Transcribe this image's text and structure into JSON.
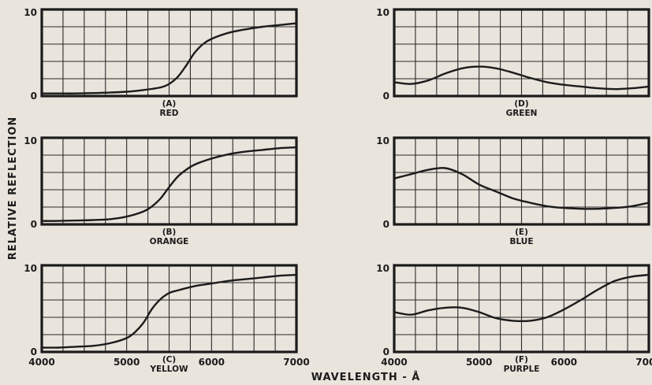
{
  "chart_data": {
    "type": "line",
    "xlabel": "WAVELENGTH - Å",
    "ylabel": "RELATIVE REFLECTION",
    "x_ticks": [
      "4000",
      "5000",
      "6000",
      "7000"
    ],
    "y_ticks": [
      "0",
      "10"
    ],
    "xlim": [
      4000,
      7000
    ],
    "ylim": [
      0,
      10
    ],
    "grid": true,
    "panels": [
      {
        "letter": "(A)",
        "name": "RED",
        "x": [
          4000,
          4200,
          4400,
          4600,
          4800,
          5000,
          5200,
          5400,
          5500,
          5600,
          5700,
          5800,
          5900,
          6000,
          6200,
          6400,
          6600,
          6800,
          7000
        ],
        "y": [
          0.3,
          0.3,
          0.3,
          0.35,
          0.4,
          0.5,
          0.7,
          1.0,
          1.4,
          2.2,
          3.5,
          5.0,
          6.0,
          6.6,
          7.3,
          7.7,
          8.0,
          8.2,
          8.4
        ]
      },
      {
        "letter": "(B)",
        "name": "ORANGE",
        "x": [
          4000,
          4200,
          4400,
          4600,
          4800,
          5000,
          5200,
          5300,
          5400,
          5500,
          5600,
          5700,
          5800,
          6000,
          6200,
          6400,
          6600,
          6800,
          7000
        ],
        "y": [
          0.4,
          0.4,
          0.45,
          0.5,
          0.6,
          0.9,
          1.5,
          2.1,
          3.0,
          4.3,
          5.5,
          6.3,
          6.9,
          7.6,
          8.1,
          8.4,
          8.6,
          8.8,
          8.9
        ]
      },
      {
        "letter": "(C)",
        "name": "YELLOW",
        "x": [
          4000,
          4200,
          4400,
          4600,
          4800,
          5000,
          5100,
          5200,
          5300,
          5400,
          5500,
          5600,
          5800,
          6000,
          6200,
          6400,
          6600,
          6800,
          7000
        ],
        "y": [
          0.5,
          0.5,
          0.6,
          0.7,
          1.0,
          1.6,
          2.3,
          3.4,
          5.0,
          6.1,
          6.8,
          7.1,
          7.6,
          7.9,
          8.2,
          8.4,
          8.6,
          8.8,
          8.9
        ]
      },
      {
        "letter": "(D)",
        "name": "GREEN",
        "x": [
          4000,
          4200,
          4400,
          4600,
          4800,
          5000,
          5200,
          5400,
          5600,
          5800,
          6000,
          6200,
          6400,
          6600,
          6800,
          7000
        ],
        "y": [
          1.6,
          1.4,
          1.8,
          2.6,
          3.2,
          3.4,
          3.2,
          2.7,
          2.1,
          1.6,
          1.3,
          1.1,
          0.9,
          0.8,
          0.9,
          1.1
        ]
      },
      {
        "letter": "(E)",
        "name": "BLUE",
        "x": [
          4000,
          4200,
          4400,
          4600,
          4800,
          5000,
          5200,
          5400,
          5600,
          5800,
          6000,
          6200,
          6400,
          6600,
          6800,
          7000
        ],
        "y": [
          5.3,
          5.8,
          6.3,
          6.5,
          5.8,
          4.6,
          3.8,
          3.0,
          2.5,
          2.1,
          1.9,
          1.8,
          1.8,
          1.9,
          2.1,
          2.5
        ]
      },
      {
        "letter": "(F)",
        "name": "PURPLE",
        "x": [
          4000,
          4200,
          4400,
          4600,
          4800,
          5000,
          5200,
          5400,
          5600,
          5800,
          6000,
          6200,
          6400,
          6600,
          6800,
          7000
        ],
        "y": [
          4.6,
          4.3,
          4.8,
          5.1,
          5.1,
          4.6,
          3.9,
          3.6,
          3.6,
          4.0,
          4.9,
          6.0,
          7.2,
          8.2,
          8.7,
          8.9
        ]
      }
    ]
  }
}
